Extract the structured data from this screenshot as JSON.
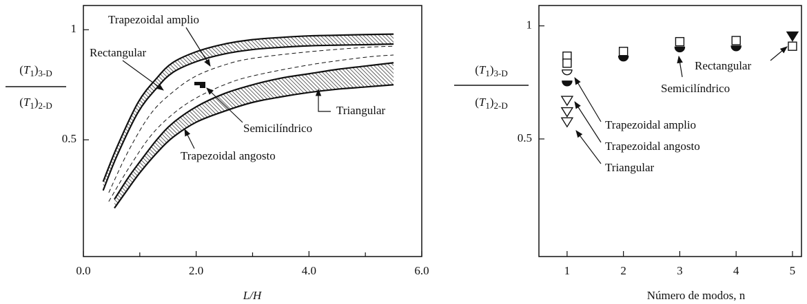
{
  "chart_data": [
    {
      "type": "line",
      "xlabel": "L/H",
      "ylabel": {
        "numerator": [
          "(",
          "T",
          "1",
          ")",
          "3-D"
        ],
        "denominator": [
          "(",
          "T",
          "1",
          ")",
          "2-D"
        ]
      },
      "xlim": [
        0,
        6
      ],
      "ylim": [
        -0.03,
        1.11
      ],
      "xticks": [
        {
          "value": 0,
          "label": "0.0"
        },
        {
          "value": 2,
          "label": "2.0"
        },
        {
          "value": 4,
          "label": "4.0"
        },
        {
          "value": 6,
          "label": "6.0"
        }
      ],
      "xminorticks": [
        1,
        3,
        5
      ],
      "yticks": [
        0.5,
        1
      ],
      "bands": [
        {
          "x": [
            0.35,
            0.6,
            0.97,
            1.3,
            1.58,
            2.0,
            2.5,
            3.0,
            3.5,
            4.0,
            4.5,
            5.0,
            5.5
          ],
          "upper": [
            0.31,
            0.47,
            0.67,
            0.78,
            0.85,
            0.9,
            0.935,
            0.955,
            0.965,
            0.972,
            0.975,
            0.978,
            0.98
          ],
          "lower": [
            0.27,
            0.43,
            0.625,
            0.735,
            0.805,
            0.855,
            0.89,
            0.91,
            0.92,
            0.927,
            0.93,
            0.932,
            0.935
          ]
        },
        {
          "x": [
            0.55,
            0.8,
            1.0,
            1.3,
            1.58,
            2.0,
            2.5,
            3.0,
            3.5,
            4.0,
            4.5,
            5.0,
            5.5
          ],
          "upper": [
            0.23,
            0.33,
            0.4,
            0.5,
            0.575,
            0.65,
            0.71,
            0.75,
            0.78,
            0.8,
            0.82,
            0.835,
            0.85
          ],
          "lower": [
            0.19,
            0.28,
            0.35,
            0.44,
            0.51,
            0.58,
            0.63,
            0.67,
            0.695,
            0.715,
            0.73,
            0.74,
            0.75
          ]
        }
      ],
      "dashed_lines": [
        {
          "x": [
            0.45,
            0.8,
            1.2,
            1.6,
            2.0,
            2.5,
            3.0,
            4.0,
            5.0,
            5.5
          ],
          "values": [
            0.26,
            0.45,
            0.62,
            0.72,
            0.79,
            0.84,
            0.87,
            0.9,
            0.92,
            0.925
          ]
        },
        {
          "x": [
            0.45,
            0.8,
            1.2,
            1.6,
            2.0,
            2.5,
            3.0,
            4.0,
            5.0,
            5.5
          ],
          "values": [
            0.22,
            0.37,
            0.52,
            0.62,
            0.69,
            0.75,
            0.79,
            0.84,
            0.875,
            0.885
          ]
        }
      ],
      "annotations": [
        {
          "text": "Trapezoidal amplio"
        },
        {
          "text": "Rectangular"
        },
        {
          "text": "Semicilíndrico"
        },
        {
          "text": "Triangular"
        },
        {
          "text": "Trapezoidal angosto"
        }
      ]
    },
    {
      "type": "scatter",
      "xlabel": "Número de modos, n",
      "ylabel": {
        "numerator": [
          "(",
          "T",
          "1",
          ")",
          "3-D"
        ],
        "denominator": [
          "(",
          "T",
          "1",
          ")",
          "2-D"
        ]
      },
      "xlim": [
        0.5,
        5.16
      ],
      "ylim": [
        -0.02,
        1.09
      ],
      "xticks": [
        1,
        2,
        3,
        4,
        5
      ],
      "yticks": [
        0.5,
        1
      ],
      "series": [
        {
          "name": "Rectangular",
          "marker": "square-open",
          "x": [
            1,
            1,
            2,
            3,
            4,
            5
          ],
          "values": [
            0.866,
            0.835,
            0.887,
            0.93,
            0.935,
            0.91
          ]
        },
        {
          "name": "Semicilíndrico",
          "marker": "semicircle-filled",
          "x": [
            1,
            2,
            3,
            4
          ],
          "values": [
            0.75,
            0.86,
            0.9,
            0.905
          ]
        },
        {
          "name": "Trapezoidal amplio",
          "marker": "semicircle-open",
          "x": [
            1
          ],
          "values": [
            0.79
          ]
        },
        {
          "name": "Trapezoidal angosto",
          "marker": "triangle-open",
          "x": [
            1
          ],
          "values": [
            0.67
          ]
        },
        {
          "name": "Triangular",
          "marker": "triangle-open",
          "x": [
            1,
            1,
            5
          ],
          "values": [
            0.62,
            0.575,
            0.955
          ],
          "filled": [
            false,
            false,
            true
          ]
        }
      ]
    }
  ]
}
